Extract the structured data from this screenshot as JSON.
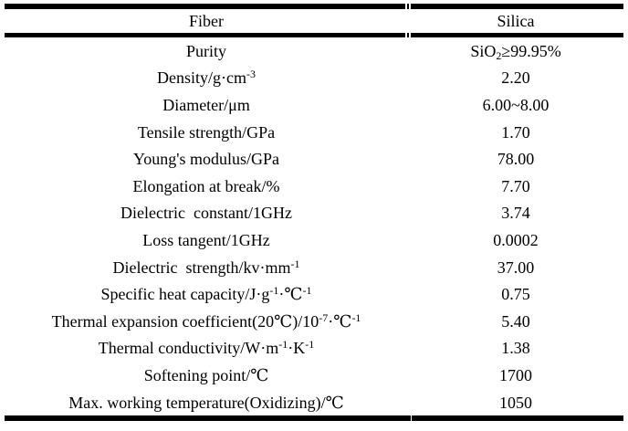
{
  "table": {
    "header": {
      "fiber": "Fiber",
      "silica": "Silica"
    },
    "rows": [
      {
        "label": [
          {
            "t": "Purity"
          }
        ],
        "value": [
          {
            "t": "SiO"
          },
          {
            "t": "2",
            "s": "sub"
          },
          {
            "t": "≥99.95%"
          }
        ]
      },
      {
        "label": [
          {
            "t": "Density/g·cm"
          },
          {
            "t": "-3",
            "s": "sup"
          }
        ],
        "value": [
          {
            "t": "2.20"
          }
        ]
      },
      {
        "label": [
          {
            "t": "Diameter/μm"
          }
        ],
        "value": [
          {
            "t": "6.00~8.00"
          }
        ]
      },
      {
        "label": [
          {
            "t": "Tensile strength/GPa"
          }
        ],
        "value": [
          {
            "t": "1.70"
          }
        ]
      },
      {
        "label": [
          {
            "t": "Young's modulus/GPa"
          }
        ],
        "value": [
          {
            "t": "78.00"
          }
        ]
      },
      {
        "label": [
          {
            "t": "Elongation at break/%"
          }
        ],
        "value": [
          {
            "t": "7.70"
          }
        ]
      },
      {
        "label": [
          {
            "t": "Dielectric  constant/1GHz"
          }
        ],
        "value": [
          {
            "t": "3.74"
          }
        ]
      },
      {
        "label": [
          {
            "t": "Loss tangent/1GHz"
          }
        ],
        "value": [
          {
            "t": "0.0002"
          }
        ]
      },
      {
        "label": [
          {
            "t": "Dielectric  strength/kv·mm"
          },
          {
            "t": "-1",
            "s": "sup"
          }
        ],
        "value": [
          {
            "t": "37.00"
          }
        ]
      },
      {
        "label": [
          {
            "t": "Specific heat capacity/J·g"
          },
          {
            "t": "-1",
            "s": "sup"
          },
          {
            "t": "·℃"
          },
          {
            "t": "-1",
            "s": "sup"
          }
        ],
        "value": [
          {
            "t": "0.75"
          }
        ]
      },
      {
        "label": [
          {
            "t": "Thermal expansion coefficient(20℃)/10"
          },
          {
            "t": "-7",
            "s": "sup"
          },
          {
            "t": "·℃"
          },
          {
            "t": "-1",
            "s": "sup"
          }
        ],
        "value": [
          {
            "t": "5.40"
          }
        ]
      },
      {
        "label": [
          {
            "t": "Thermal conductivity/W·m"
          },
          {
            "t": "-1",
            "s": "sup"
          },
          {
            "t": "·K"
          },
          {
            "t": "-1",
            "s": "sup"
          }
        ],
        "value": [
          {
            "t": "1.38"
          }
        ]
      },
      {
        "label": [
          {
            "t": "Softening point/℃"
          }
        ],
        "value": [
          {
            "t": "1700"
          }
        ]
      },
      {
        "label": [
          {
            "t": "Max. working temperature(Oxidizing)/℃"
          }
        ],
        "value": [
          {
            "t": "1050"
          }
        ]
      }
    ]
  }
}
